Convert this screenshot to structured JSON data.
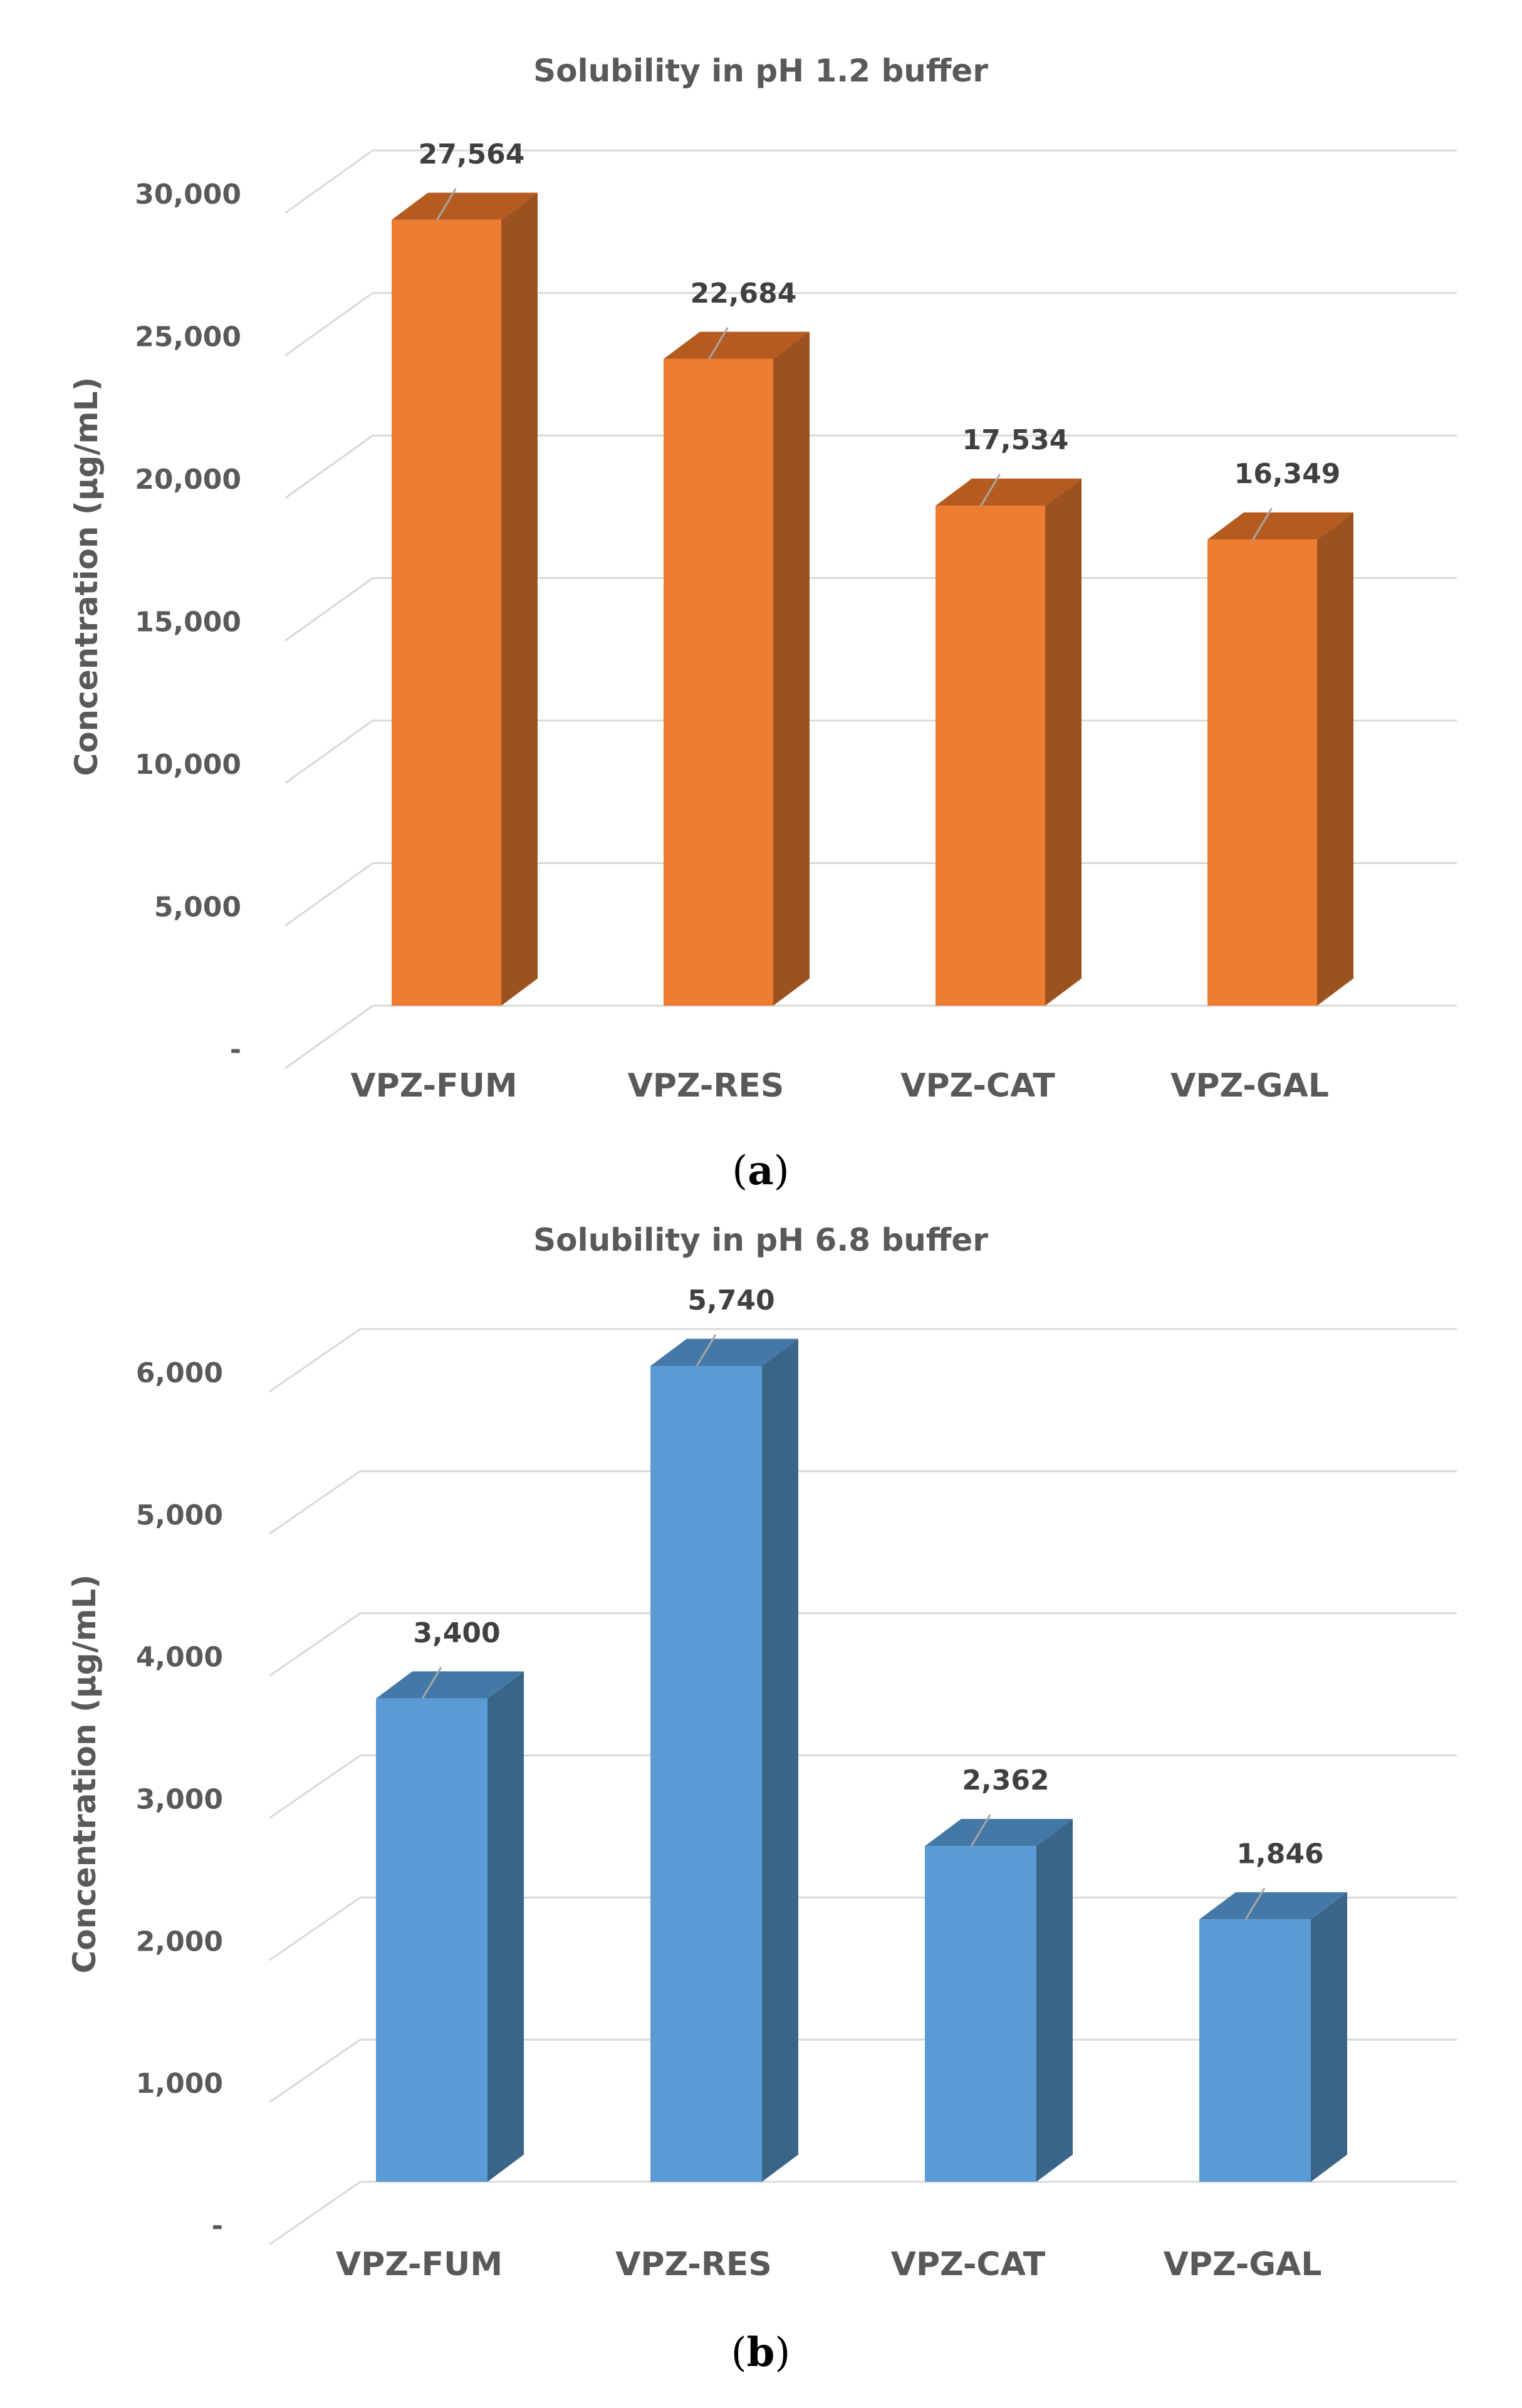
{
  "chart_data": [
    {
      "type": "bar",
      "style": "3d-column",
      "title": "Solubility in pH 1.2 buffer",
      "xlabel": "",
      "ylabel": "Concentration (µg/mL)",
      "categories": [
        "VPZ-FUM",
        "VPZ-RES",
        "VPZ-CAT",
        "VPZ-GAL"
      ],
      "values": [
        27564,
        22684,
        17534,
        16349
      ],
      "data_labels": [
        "27,564",
        "22,684",
        "17,534",
        "16,349"
      ],
      "ylim": [
        0,
        30000
      ],
      "yticks": [
        0,
        5000,
        10000,
        15000,
        20000,
        25000,
        30000
      ],
      "ytick_labels": [
        "-",
        "5,000",
        "10,000",
        "15,000",
        "20,000",
        "25,000",
        "30,000"
      ],
      "grid": true,
      "color": "#ED7D31",
      "side_color": "#9C521E",
      "top_color": "#B65B20",
      "caption_open": "(",
      "caption": "a",
      "caption_close": ")"
    },
    {
      "type": "bar",
      "style": "3d-column",
      "title": "Solubility in pH 6.8 buffer",
      "xlabel": "",
      "ylabel": "Concentration (µg/mL)",
      "categories": [
        "VPZ-FUM",
        "VPZ-RES",
        "VPZ-CAT",
        "VPZ-GAL"
      ],
      "values": [
        3400,
        5740,
        2362,
        1846
      ],
      "data_labels": [
        "3,400",
        "5,740",
        "2,362",
        "1,846"
      ],
      "ylim": [
        0,
        6000
      ],
      "yticks": [
        0,
        1000,
        2000,
        3000,
        4000,
        5000,
        6000
      ],
      "ytick_labels": [
        "-",
        "1,000",
        "2,000",
        "3,000",
        "4,000",
        "5,000",
        "6,000"
      ],
      "grid": true,
      "color": "#5B9BD5",
      "side_color": "#3A6589",
      "top_color": "#4478A6",
      "caption_open": "(",
      "caption": "b",
      "caption_close": ")"
    }
  ]
}
